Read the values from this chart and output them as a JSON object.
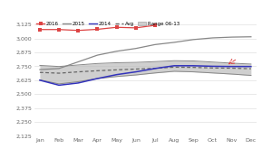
{
  "months": [
    "Jan",
    "Feb",
    "Mar",
    "Apr",
    "May",
    "Jun",
    "Jul",
    "Aug",
    "Sep",
    "Oct",
    "Nov",
    "Dec"
  ],
  "line_2016": [
    3080,
    3080,
    3072,
    3082,
    3100,
    3095,
    3118,
    null,
    null,
    null,
    null,
    null
  ],
  "line_2015": [
    2720,
    2730,
    2790,
    2850,
    2885,
    2910,
    2945,
    2965,
    2990,
    3005,
    3012,
    3015
  ],
  "line_2014": [
    2625,
    2580,
    2600,
    2640,
    2675,
    2700,
    2730,
    2755,
    2755,
    2750,
    2748,
    2748
  ],
  "line_avg": [
    2695,
    2688,
    2700,
    2710,
    2718,
    2725,
    2732,
    2742,
    2740,
    2735,
    2733,
    2728
  ],
  "range_upper": [
    2758,
    2748,
    2762,
    2775,
    2782,
    2785,
    2792,
    2800,
    2798,
    2788,
    2778,
    2770
  ],
  "range_lower": [
    2628,
    2592,
    2612,
    2640,
    2658,
    2672,
    2690,
    2705,
    2700,
    2690,
    2680,
    2668
  ],
  "color_2016": "#dd4444",
  "color_2015": "#888888",
  "color_2014": "#3333bb",
  "color_avg": "#666666",
  "color_range_fill": "#bbbbbb",
  "color_range_border": "#888888",
  "ylim": [
    2125,
    3175
  ],
  "yticks": [
    2125,
    2250,
    2375,
    2500,
    2625,
    2750,
    2875,
    3000,
    3125
  ],
  "bg_color": "#ffffff",
  "grid_color": "#e0e0e0"
}
